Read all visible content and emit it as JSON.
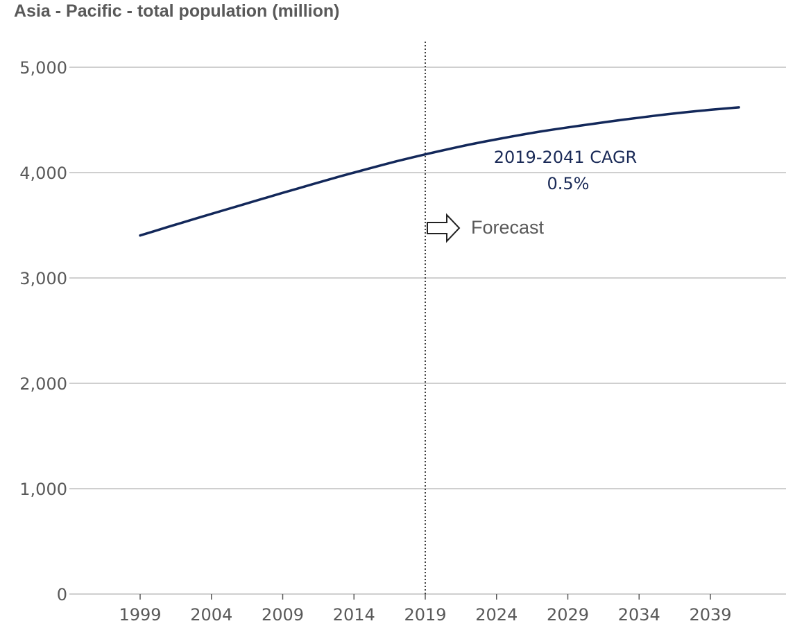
{
  "chart_data": {
    "type": "line",
    "title": "Asia - Pacific - total population (million)",
    "xlabel": "",
    "ylabel": "",
    "x": [
      1999,
      2000,
      2001,
      2002,
      2003,
      2004,
      2005,
      2006,
      2007,
      2008,
      2009,
      2010,
      2011,
      2012,
      2013,
      2014,
      2015,
      2016,
      2017,
      2018,
      2019,
      2020,
      2021,
      2022,
      2023,
      2024,
      2025,
      2026,
      2027,
      2028,
      2029,
      2030,
      2031,
      2032,
      2033,
      2034,
      2035,
      2036,
      2037,
      2038,
      2039,
      2040,
      2041
    ],
    "series": [
      {
        "color": "#13285a",
        "values": [
          3403,
          3445,
          3486,
          3527,
          3568,
          3608,
          3648,
          3688,
          3728,
          3768,
          3808,
          3847,
          3886,
          3925,
          3963,
          4000,
          4037,
          4073,
          4108,
          4141,
          4173,
          4204,
          4234,
          4263,
          4290,
          4316,
          4341,
          4365,
          4388,
          4409,
          4429,
          4448,
          4467,
          4486,
          4504,
          4521,
          4538,
          4554,
          4569,
          4583,
          4596,
          4608,
          4619
        ]
      }
    ],
    "x_ticks": [
      "1999",
      "2004",
      "2009",
      "2014",
      "2019",
      "2024",
      "2029",
      "2034",
      "2039"
    ],
    "y_ticks": [
      "0",
      "1,000",
      "2,000",
      "3,000",
      "4,000",
      "5,000"
    ],
    "ylim": [
      0,
      5000
    ],
    "xlim": [
      1999,
      2041
    ],
    "grid": true,
    "forecast_start": 2019,
    "annotations": {
      "cagr_line1": "2019-2041 CAGR",
      "cagr_line2": "0.5%",
      "forecast": "Forecast"
    }
  },
  "colors": {
    "line": "#13285a",
    "grid": "#bfbfbf",
    "text": "#595959"
  }
}
